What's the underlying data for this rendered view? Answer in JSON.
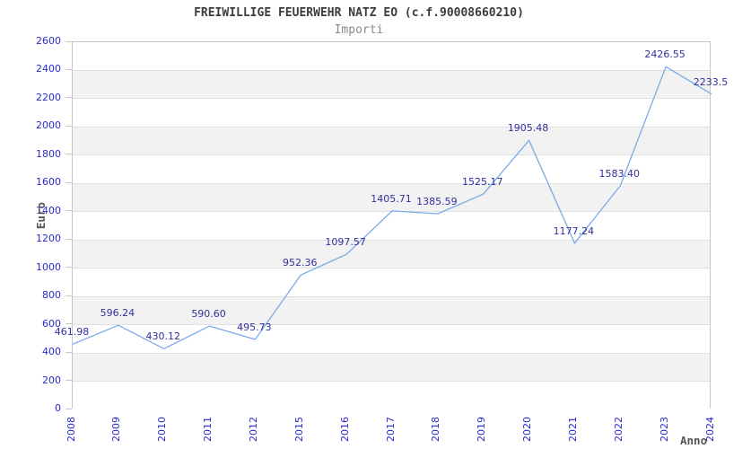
{
  "chart_data": {
    "type": "line",
    "title": "FREIWILLIGE FEUERWEHR NATZ EO (c.f.90008660210)",
    "subtitle": "Importi",
    "xlabel": "Anno",
    "ylabel": "Euro",
    "categories": [
      "2008",
      "2009",
      "2010",
      "2011",
      "2012",
      "2015",
      "2016",
      "2017",
      "2018",
      "2019",
      "2020",
      "2021",
      "2022",
      "2023",
      "2024"
    ],
    "values": [
      461.98,
      596.24,
      430.12,
      590.6,
      495.73,
      952.36,
      1097.57,
      1405.71,
      1385.59,
      1525.17,
      1905.48,
      1177.24,
      1583.4,
      2426.55,
      2233.5
    ],
    "point_labels": [
      "461.98",
      "596.24",
      "430.12",
      "590.60",
      "495.73",
      "952.36",
      "1097.57",
      "1405.71",
      "1385.59",
      "1525.17",
      "1905.48",
      "1177.24",
      "1583.40",
      "2426.55",
      "2233.5"
    ],
    "ylim": [
      0,
      2600
    ],
    "y_ticks": [
      0,
      200,
      400,
      600,
      800,
      1000,
      1200,
      1400,
      1600,
      1800,
      2000,
      2200,
      2400,
      2600
    ],
    "grid": "alternating-horizontal-bands",
    "legend": "none",
    "colors": {
      "line": "#7aabe8",
      "tick_label": "#2a2acc",
      "data_label": "#30309c",
      "band_fill": "#f2f2f2",
      "grid_line": "#e0e0e0",
      "axis_border": "#c6c6c6",
      "tick_mark": "#c6c6c6",
      "title": "#3c3c3c",
      "subtitle": "#8a8a8a",
      "axis_title": "#555555"
    }
  }
}
